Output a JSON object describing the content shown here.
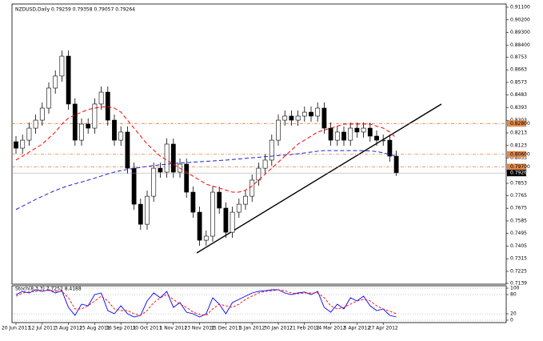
{
  "chart_data": [
    {
      "type": "candlestick",
      "title": "NZDUSD,Daily 0.79259 0.79358 0.79057 0.79264",
      "categories": [
        "20 Jun 2011",
        null,
        null,
        null,
        "12 Jul 2011",
        null,
        null,
        null,
        "3 Aug 2011",
        null,
        null,
        null,
        "25 Aug 2011",
        null,
        null,
        null,
        "16 Sep 2011",
        null,
        null,
        null,
        "10 Oct 2011",
        null,
        null,
        null,
        "1 Nov 2011",
        null,
        null,
        null,
        "23 Nov 2011",
        null,
        null,
        null,
        "15 Dec 2011",
        null,
        null,
        null,
        "6 Jan 2012",
        null,
        null,
        null,
        "30 Jan 2012",
        null,
        null,
        null,
        "21 Feb 2012",
        null,
        null,
        null,
        "14 Mar 2012",
        null,
        null,
        null,
        "5 Apr 2012",
        null,
        null,
        null,
        "27 Apr 2012",
        null,
        null
      ],
      "open": [
        0.815,
        0.8104,
        0.8161,
        0.8247,
        0.8304,
        0.839,
        0.8533,
        0.8619,
        0.8761,
        0.8419,
        0.8161,
        0.8276,
        0.8247,
        0.8419,
        0.8504,
        0.8304,
        0.8161,
        0.8219,
        0.7961,
        0.7704,
        0.7561,
        0.7761,
        0.7961,
        0.7933,
        0.8133,
        0.7933,
        0.799,
        0.779,
        0.7647,
        0.7447,
        0.7476,
        0.779,
        0.7676,
        0.7504,
        0.7647,
        0.7704,
        0.7761,
        0.7876,
        0.7961,
        0.8019,
        0.8161,
        0.8304,
        0.8333,
        0.8304,
        0.8333,
        0.8361,
        0.8333,
        0.839,
        0.8247,
        0.8161,
        0.8219,
        0.8161,
        0.8247,
        0.8219,
        0.8247,
        0.819,
        0.8161,
        0.8161,
        0.8047
      ],
      "high": [
        0.819,
        0.8201,
        0.8287,
        0.8344,
        0.843,
        0.8573,
        0.8659,
        0.8801,
        0.8801,
        0.8459,
        0.8316,
        0.8316,
        0.8459,
        0.8544,
        0.8544,
        0.8344,
        0.8259,
        0.8259,
        0.8001,
        0.7744,
        0.7801,
        0.8001,
        0.8001,
        0.8173,
        0.8173,
        0.803,
        0.803,
        0.783,
        0.7687,
        0.7516,
        0.783,
        0.783,
        0.7716,
        0.7687,
        0.7744,
        0.7801,
        0.7916,
        0.8001,
        0.8059,
        0.8201,
        0.8344,
        0.8373,
        0.8373,
        0.8373,
        0.8401,
        0.8401,
        0.843,
        0.843,
        0.8287,
        0.8259,
        0.8259,
        0.8287,
        0.8287,
        0.8287,
        0.8287,
        0.823,
        0.8201,
        0.8201,
        0.8087
      ],
      "low": [
        0.8064,
        0.8064,
        0.8121,
        0.8207,
        0.8264,
        0.835,
        0.8493,
        0.8579,
        0.8379,
        0.8121,
        0.8121,
        0.8207,
        0.8207,
        0.8379,
        0.8264,
        0.8121,
        0.8121,
        0.7921,
        0.7664,
        0.7521,
        0.7521,
        0.7721,
        0.7893,
        0.7893,
        0.7893,
        0.7893,
        0.775,
        0.7607,
        0.7407,
        0.7407,
        0.7436,
        0.7636,
        0.7464,
        0.7464,
        0.7607,
        0.7664,
        0.7721,
        0.7836,
        0.7921,
        0.7979,
        0.8121,
        0.8264,
        0.8264,
        0.8264,
        0.8293,
        0.8293,
        0.8293,
        0.8207,
        0.8121,
        0.8121,
        0.8121,
        0.8121,
        0.8179,
        0.8179,
        0.815,
        0.8121,
        0.8121,
        0.8007,
        0.7906
      ],
      "close": [
        0.8104,
        0.8161,
        0.8247,
        0.8304,
        0.839,
        0.8533,
        0.8619,
        0.8761,
        0.8419,
        0.8161,
        0.8276,
        0.8247,
        0.8419,
        0.8504,
        0.8304,
        0.8161,
        0.8219,
        0.7961,
        0.7704,
        0.7561,
        0.7761,
        0.7961,
        0.7933,
        0.8133,
        0.7933,
        0.799,
        0.779,
        0.7647,
        0.7447,
        0.7476,
        0.779,
        0.7676,
        0.7504,
        0.7647,
        0.7704,
        0.7761,
        0.7876,
        0.7961,
        0.8019,
        0.8161,
        0.8304,
        0.8333,
        0.8304,
        0.8333,
        0.8361,
        0.8333,
        0.839,
        0.8247,
        0.8161,
        0.8219,
        0.8161,
        0.8247,
        0.8219,
        0.8247,
        0.819,
        0.8161,
        0.8161,
        0.8047,
        0.79264
      ],
      "moving_averages": [
        {
          "color": "#ff0000",
          "values": [
            0.8019,
            0.8047,
            0.8076,
            0.8104,
            0.8133,
            0.8176,
            0.8219,
            0.8276,
            0.8319,
            0.834,
            0.8361,
            0.838,
            0.839,
            0.8397,
            0.84,
            0.839,
            0.8361,
            0.8304,
            0.8247,
            0.819,
            0.8133,
            0.809,
            0.8047,
            0.8019,
            0.799,
            0.7961,
            0.7933,
            0.7904,
            0.7876,
            0.7847,
            0.7833,
            0.7819,
            0.7804,
            0.779,
            0.779,
            0.7804,
            0.7833,
            0.7876,
            0.7919,
            0.7961,
            0.8004,
            0.8047,
            0.809,
            0.8133,
            0.8161,
            0.819,
            0.8219,
            0.8233,
            0.8247,
            0.8261,
            0.8276,
            0.8276,
            0.8276,
            0.8276,
            0.8276,
            0.8261,
            0.8247,
            0.8219,
            0.8176
          ]
        },
        {
          "color": "#2020d0",
          "values": [
            0.7666,
            0.769,
            0.7714,
            0.7738,
            0.776,
            0.7782,
            0.7802,
            0.782,
            0.7836,
            0.785,
            0.7862,
            0.7876,
            0.789,
            0.7905,
            0.792,
            0.7933,
            0.7944,
            0.7952,
            0.796,
            0.7967,
            0.7974,
            0.798,
            0.7985,
            0.799,
            0.7994,
            0.7998,
            0.8001,
            0.8004,
            0.8007,
            0.801,
            0.8013,
            0.8016,
            0.8019,
            0.8023,
            0.8027,
            0.8031,
            0.8035,
            0.8039,
            0.8043,
            0.8047,
            0.8051,
            0.8055,
            0.8059,
            0.8064,
            0.807,
            0.8076,
            0.8082,
            0.8087,
            0.8087,
            0.8087,
            0.8087,
            0.8087,
            0.8087,
            0.8087,
            0.8084,
            0.808,
            0.807,
            0.8059,
            0.8047
          ]
        }
      ],
      "levels": [
        {
          "value": 0.828,
          "label": "0.82800"
        },
        {
          "value": 0.806,
          "label": "0.80600"
        },
        {
          "value": 0.797,
          "label": "0.79700"
        }
      ],
      "price_label": 0.79264,
      "ylim": [
        0.7139,
        0.911
      ],
      "yticks": [
        {
          "value": 0.911,
          "label": "0.91100"
        },
        {
          "value": 0.902,
          "label": "0.90200"
        },
        {
          "value": 0.893,
          "label": "0.89300"
        },
        {
          "value": 0.884,
          "label": "0.88400"
        },
        0.8753,
        0.8663,
        0.8573,
        0.8483,
        0.8393,
        0.8303,
        0.8213,
        0.8123,
        0.8033,
        0.7943,
        0.7853,
        0.7765,
        0.7675,
        0.7585,
        0.7495,
        0.7405,
        0.7315,
        0.7225,
        0.7139
      ]
    },
    {
      "type": "line",
      "title": "Stoch(8,3,3) 7.7252 8.4188",
      "series": [
        {
          "color": "#0000ff",
          "values": [
            80,
            90,
            85,
            95,
            90,
            95,
            85,
            92,
            40,
            15,
            50,
            45,
            80,
            85,
            30,
            20,
            45,
            20,
            10,
            15,
            60,
            85,
            70,
            90,
            40,
            55,
            25,
            20,
            10,
            20,
            70,
            50,
            20,
            55,
            65,
            75,
            85,
            90,
            92,
            95,
            95,
            85,
            80,
            85,
            88,
            80,
            90,
            40,
            25,
            50,
            35,
            70,
            60,
            75,
            45,
            30,
            35,
            15,
            10
          ]
        },
        {
          "color": "#ff0000",
          "values": [
            75,
            85,
            88,
            90,
            92,
            93,
            90,
            90,
            70,
            35,
            35,
            45,
            60,
            75,
            60,
            35,
            30,
            30,
            20,
            15,
            30,
            55,
            70,
            80,
            65,
            50,
            40,
            25,
            18,
            15,
            35,
            50,
            45,
            40,
            50,
            65,
            75,
            85,
            90,
            92,
            95,
            92,
            85,
            83,
            85,
            85,
            85,
            70,
            45,
            35,
            40,
            50,
            60,
            65,
            60,
            45,
            35,
            28,
            20
          ]
        }
      ],
      "ylim": [
        0,
        100
      ],
      "yticks": [
        100,
        80,
        20,
        0
      ]
    }
  ]
}
